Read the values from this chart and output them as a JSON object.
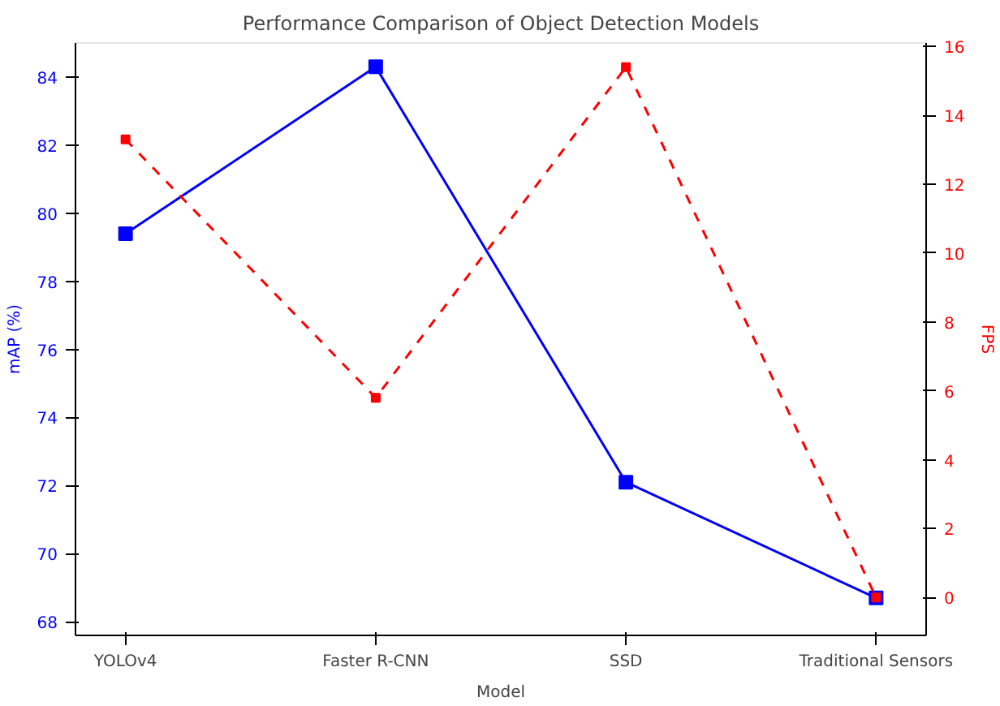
{
  "chart_data": {
    "type": "line",
    "title": "Performance Comparison of Object Detection Models",
    "xlabel": "Model",
    "ylabel": "mAP (%)",
    "y2label": "FPS",
    "categories": [
      "YOLOv4",
      "Faster R-CNN",
      "SSD",
      "Traditional Sensors"
    ],
    "series": [
      {
        "color": "#0000ff",
        "values": [
          79.4,
          84.3,
          72.1,
          68.7
        ],
        "line_style": "solid"
      },
      {
        "color": "#ff0000",
        "values": [
          13.3,
          5.8,
          15.4,
          0
        ],
        "axis": "y2",
        "line_style": "dashed"
      }
    ],
    "ylim": [
      67.6,
      85
    ],
    "yticks": [
      68,
      70,
      72,
      74,
      76,
      78,
      80,
      82,
      84
    ],
    "y2lim": [
      -1.1,
      16.1
    ],
    "y2ticks": [
      0,
      2,
      4,
      6,
      8,
      10,
      12,
      14,
      16
    ],
    "marker": "square",
    "grid": false
  }
}
